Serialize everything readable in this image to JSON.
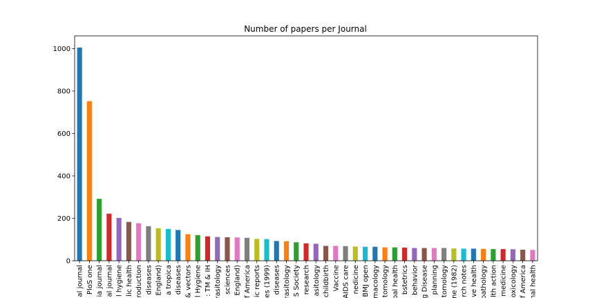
{
  "chart_data": {
    "type": "bar",
    "title": "Number of papers per Journal",
    "xlabel": "",
    "ylabel": "",
    "ylim": [
      0,
      1060
    ],
    "yticks": [
      0,
      200,
      400,
      600,
      800,
      1000
    ],
    "grid": false,
    "legend": "none",
    "categories": [
      "al journal",
      "PloS one",
      "ia journal",
      "al journal",
      "l hygiene",
      "lic health",
      "roduction",
      "diseases",
      "England)",
      "a tropica",
      "diseases",
      "& vectors",
      "l Hygiene",
      ": TM & IH",
      "rasitology",
      "sciences",
      "England)",
      "f America",
      "ic reports",
      "es (1999)",
      "diseases",
      "rasitology",
      "S Society",
      "research",
      "asitology",
      "childbirth",
      "Vaccine",
      "AIDS care",
      "nedicine",
      "BMJ open",
      "macology",
      "tomology",
      "oal health",
      "bstetrics",
      "behavior",
      "g Disease",
      "planning",
      "tomology",
      "ne (1982)",
      "rch notes",
      "ve health",
      "pathology",
      "lth action",
      "medicine",
      "oxicology",
      "f America",
      "nal health"
    ],
    "values": [
      1005,
      752,
      292,
      222,
      202,
      183,
      177,
      163,
      153,
      150,
      145,
      125,
      121,
      115,
      112,
      111,
      110,
      108,
      103,
      102,
      93,
      92,
      87,
      82,
      80,
      70,
      70,
      69,
      67,
      66,
      66,
      63,
      63,
      62,
      60,
      60,
      60,
      60,
      58,
      57,
      57,
      56,
      55,
      55,
      54,
      52,
      51
    ],
    "colors": [
      "#1f77b4",
      "#ff7f0e",
      "#2ca02c",
      "#d62728",
      "#9467bd",
      "#8c564b",
      "#e377c2",
      "#7f7f7f",
      "#bcbd22",
      "#17becf"
    ]
  }
}
